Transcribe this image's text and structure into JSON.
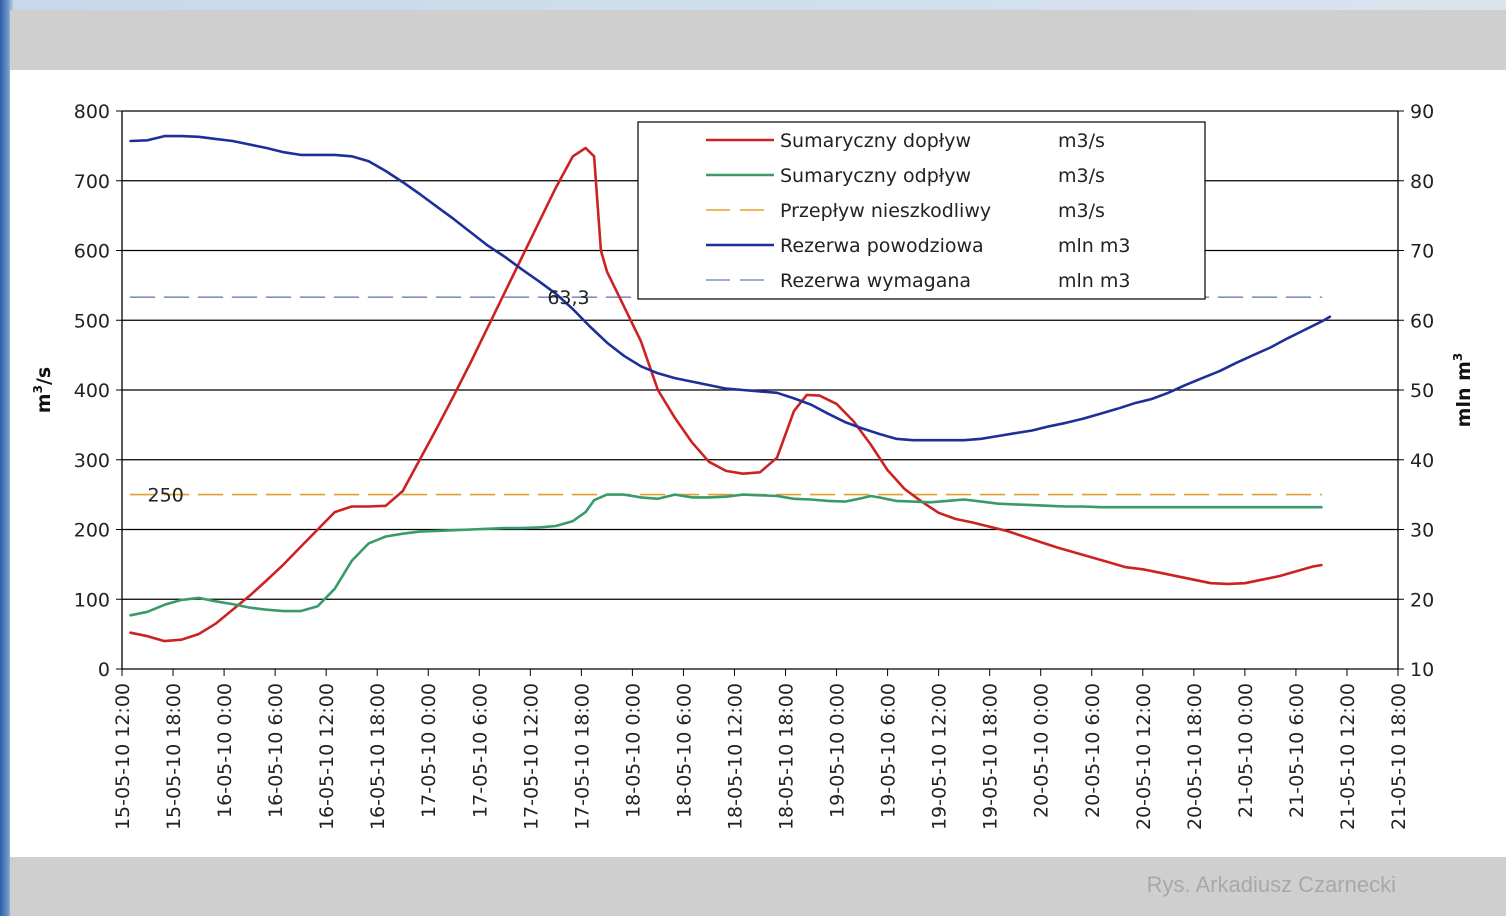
{
  "credit": "Rys. Arkadiusz Czarnecki",
  "chart_data": {
    "type": "line",
    "y_left": {
      "label": "m³/s",
      "label_base": "m",
      "label_sup": "3",
      "label_rest": "/s",
      "range": [
        0,
        800
      ],
      "ticks": [
        0,
        100,
        200,
        300,
        400,
        500,
        600,
        700,
        800
      ]
    },
    "y_right": {
      "label": "mln m³",
      "label_base": "mln m",
      "label_sup": "3",
      "range": [
        10,
        90
      ],
      "ticks": [
        10,
        20,
        30,
        40,
        50,
        60,
        70,
        80,
        90
      ]
    },
    "x_ticks": [
      "15-05-10 12:00",
      "15-05-10 18:00",
      "16-05-10 0:00",
      "16-05-10 6:00",
      "16-05-10 12:00",
      "16-05-10 18:00",
      "17-05-10 0:00",
      "17-05-10 6:00",
      "17-05-10 12:00",
      "17-05-10 18:00",
      "18-05-10 0:00",
      "18-05-10 6:00",
      "18-05-10 12:00",
      "18-05-10 18:00",
      "19-05-10 0:00",
      "19-05-10 6:00",
      "19-05-10 12:00",
      "19-05-10 18:00",
      "20-05-10 0:00",
      "20-05-10 6:00",
      "20-05-10 12:00",
      "20-05-10 18:00",
      "21-05-10 0:00",
      "21-05-10 6:00",
      "21-05-10 12:00",
      "21-05-10 18:00"
    ],
    "x_unit": "hours from 15-05-10 12:00",
    "grid": true,
    "legend_position": "top-right",
    "annotations": [
      {
        "text": "63,3",
        "axis": "right",
        "y": 63.3
      },
      {
        "text": "250",
        "axis": "left",
        "y": 250
      }
    ],
    "series": [
      {
        "name": "Sumaryczny dopływ",
        "unit": "m3/s",
        "axis": "left",
        "color": "#cc2222",
        "style": "solid",
        "points": [
          [
            1,
            52
          ],
          [
            3,
            47
          ],
          [
            5,
            40
          ],
          [
            7,
            42
          ],
          [
            9,
            50
          ],
          [
            11,
            65
          ],
          [
            13,
            85
          ],
          [
            15,
            105
          ],
          [
            17,
            127
          ],
          [
            19,
            150
          ],
          [
            21,
            175
          ],
          [
            23,
            200
          ],
          [
            25,
            225
          ],
          [
            27,
            233
          ],
          [
            29,
            233
          ],
          [
            31,
            234
          ],
          [
            33,
            255
          ],
          [
            35,
            300
          ],
          [
            37,
            345
          ],
          [
            39,
            392
          ],
          [
            41,
            440
          ],
          [
            43,
            490
          ],
          [
            45,
            540
          ],
          [
            47,
            590
          ],
          [
            49,
            640
          ],
          [
            51,
            690
          ],
          [
            53,
            735
          ],
          [
            54.5,
            747
          ],
          [
            55.5,
            735
          ],
          [
            56.3,
            600
          ],
          [
            57,
            570
          ],
          [
            59,
            520
          ],
          [
            61,
            470
          ],
          [
            63,
            400
          ],
          [
            65,
            360
          ],
          [
            67,
            325
          ],
          [
            69,
            297
          ],
          [
            71,
            284
          ],
          [
            73,
            280
          ],
          [
            75,
            282
          ],
          [
            77,
            303
          ],
          [
            79,
            370
          ],
          [
            80.5,
            393
          ],
          [
            82,
            392
          ],
          [
            84,
            380
          ],
          [
            86,
            355
          ],
          [
            88,
            322
          ],
          [
            90,
            285
          ],
          [
            92,
            258
          ],
          [
            94,
            240
          ],
          [
            96,
            224
          ],
          [
            98,
            215
          ],
          [
            100,
            210
          ],
          [
            102,
            204
          ],
          [
            104,
            198
          ],
          [
            106,
            190
          ],
          [
            108,
            182
          ],
          [
            110,
            174
          ],
          [
            112,
            167
          ],
          [
            114,
            160
          ],
          [
            116,
            153
          ],
          [
            118,
            146
          ],
          [
            120,
            143
          ],
          [
            122,
            138
          ],
          [
            124,
            133
          ],
          [
            126,
            128
          ],
          [
            128,
            123
          ],
          [
            130,
            122
          ],
          [
            132,
            123
          ],
          [
            134,
            128
          ],
          [
            136,
            133
          ],
          [
            138,
            140
          ],
          [
            140,
            147
          ],
          [
            141,
            149
          ]
        ]
      },
      {
        "name": "Sumaryczny odpływ",
        "unit": "m3/s",
        "axis": "left",
        "color": "#3a9a6a",
        "style": "solid",
        "points": [
          [
            1,
            77
          ],
          [
            3,
            82
          ],
          [
            5,
            92
          ],
          [
            7,
            99
          ],
          [
            9,
            102
          ],
          [
            11,
            97
          ],
          [
            13,
            93
          ],
          [
            15,
            88
          ],
          [
            17,
            85
          ],
          [
            19,
            83
          ],
          [
            21,
            83
          ],
          [
            23,
            90
          ],
          [
            25,
            115
          ],
          [
            27,
            155
          ],
          [
            29,
            180
          ],
          [
            31,
            190
          ],
          [
            33,
            194
          ],
          [
            35,
            197
          ],
          [
            37,
            198
          ],
          [
            39,
            199
          ],
          [
            41,
            200
          ],
          [
            43,
            201
          ],
          [
            45,
            202
          ],
          [
            47,
            202
          ],
          [
            49,
            203
          ],
          [
            51,
            205
          ],
          [
            53,
            212
          ],
          [
            54.5,
            225
          ],
          [
            55.5,
            242
          ],
          [
            57,
            250
          ],
          [
            59,
            250
          ],
          [
            61,
            246
          ],
          [
            63,
            244
          ],
          [
            65,
            250
          ],
          [
            67,
            246
          ],
          [
            69,
            246
          ],
          [
            71,
            247
          ],
          [
            73,
            250
          ],
          [
            75,
            249
          ],
          [
            77,
            248
          ],
          [
            79,
            244
          ],
          [
            81,
            243
          ],
          [
            83,
            241
          ],
          [
            85,
            240
          ],
          [
            87,
            245
          ],
          [
            88,
            248
          ],
          [
            89,
            246
          ],
          [
            91,
            241
          ],
          [
            93,
            240
          ],
          [
            95,
            239
          ],
          [
            97,
            241
          ],
          [
            99,
            243
          ],
          [
            101,
            240
          ],
          [
            103,
            237
          ],
          [
            105,
            236
          ],
          [
            107,
            235
          ],
          [
            109,
            234
          ],
          [
            111,
            233
          ],
          [
            113,
            233
          ],
          [
            115,
            232
          ],
          [
            117,
            232
          ],
          [
            119,
            232
          ],
          [
            121,
            232
          ],
          [
            123,
            232
          ],
          [
            125,
            232
          ],
          [
            127,
            232
          ],
          [
            129,
            232
          ],
          [
            131,
            232
          ],
          [
            133,
            232
          ],
          [
            135,
            232
          ],
          [
            137,
            232
          ],
          [
            139,
            232
          ],
          [
            141,
            232
          ]
        ]
      },
      {
        "name": "Przepływ  nieszkodliwy",
        "unit": "m3/s",
        "axis": "left",
        "color": "#e0a030",
        "style": "dashed",
        "points": [
          [
            1,
            250
          ],
          [
            141,
            250
          ]
        ]
      },
      {
        "name": "Rezerwa powodziowa",
        "unit": "mln m3",
        "axis": "right",
        "color": "#1e2f9a",
        "style": "solid",
        "points": [
          [
            1,
            85.7
          ],
          [
            3,
            85.8
          ],
          [
            5,
            86.4
          ],
          [
            7,
            86.4
          ],
          [
            9,
            86.3
          ],
          [
            11,
            86.0
          ],
          [
            13,
            85.7
          ],
          [
            15,
            85.2
          ],
          [
            17,
            84.7
          ],
          [
            19,
            84.1
          ],
          [
            21,
            83.7
          ],
          [
            23,
            83.7
          ],
          [
            25,
            83.7
          ],
          [
            27,
            83.5
          ],
          [
            29,
            82.8
          ],
          [
            31,
            81.4
          ],
          [
            33,
            79.8
          ],
          [
            35,
            78.1
          ],
          [
            37,
            76.3
          ],
          [
            39,
            74.5
          ],
          [
            41,
            72.6
          ],
          [
            43,
            70.7
          ],
          [
            45,
            69.1
          ],
          [
            47,
            67.3
          ],
          [
            49,
            65.6
          ],
          [
            51,
            63.8
          ],
          [
            53,
            61.6
          ],
          [
            55,
            59.1
          ],
          [
            57,
            56.8
          ],
          [
            59,
            54.9
          ],
          [
            61,
            53.4
          ],
          [
            63,
            52.4
          ],
          [
            65,
            51.7
          ],
          [
            67,
            51.2
          ],
          [
            69,
            50.7
          ],
          [
            71,
            50.2
          ],
          [
            73,
            50.0
          ],
          [
            75,
            49.8
          ],
          [
            77,
            49.6
          ],
          [
            79,
            48.8
          ],
          [
            81,
            47.9
          ],
          [
            83,
            46.6
          ],
          [
            85,
            45.4
          ],
          [
            87,
            44.5
          ],
          [
            89,
            43.7
          ],
          [
            91,
            43.0
          ],
          [
            93,
            42.8
          ],
          [
            95,
            42.8
          ],
          [
            97,
            42.8
          ],
          [
            99,
            42.8
          ],
          [
            101,
            43.0
          ],
          [
            103,
            43.4
          ],
          [
            105,
            43.8
          ],
          [
            107,
            44.2
          ],
          [
            109,
            44.8
          ],
          [
            111,
            45.3
          ],
          [
            113,
            45.9
          ],
          [
            115,
            46.6
          ],
          [
            117,
            47.3
          ],
          [
            119,
            48.1
          ],
          [
            121,
            48.7
          ],
          [
            123,
            49.6
          ],
          [
            125,
            50.7
          ],
          [
            127,
            51.7
          ],
          [
            129,
            52.7
          ],
          [
            131,
            53.9
          ],
          [
            133,
            55.0
          ],
          [
            135,
            56.1
          ],
          [
            137,
            57.4
          ],
          [
            139,
            58.6
          ],
          [
            141,
            59.8
          ],
          [
            142,
            60.5
          ]
        ]
      },
      {
        "name": "Rezerwa wymagana",
        "unit": "mln m3",
        "axis": "right",
        "color": "#7f8fc8",
        "style": "dashed",
        "points": [
          [
            1,
            63.3
          ],
          [
            141,
            63.3
          ]
        ]
      }
    ]
  }
}
